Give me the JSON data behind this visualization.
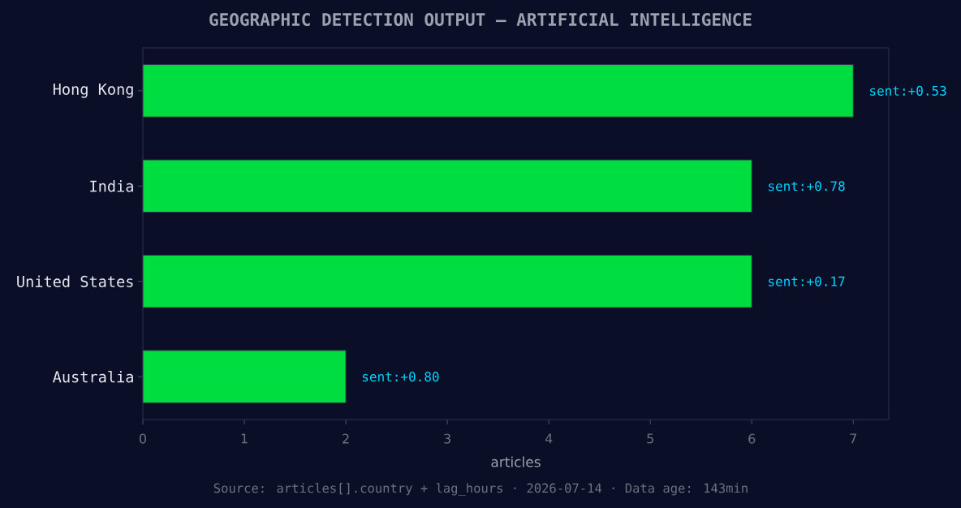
{
  "chart_data": {
    "type": "bar",
    "orientation": "horizontal",
    "title": "GEOGRAPHIC DETECTION OUTPUT — ARTIFICIAL INTELLIGENCE",
    "xlabel": "articles",
    "categories": [
      "Hong Kong",
      "India",
      "United States",
      "Australia"
    ],
    "values": [
      7,
      6,
      6,
      2
    ],
    "color": "#00dd40",
    "xlim": [
      0,
      7.35
    ],
    "xticks": [
      0,
      1,
      2,
      3,
      4,
      5,
      6,
      7
    ],
    "annotations": [
      {
        "text": "sent:+0.53",
        "x": 7,
        "y": "Hong Kong"
      },
      {
        "text": "sent:+0.78",
        "x": 6,
        "y": "India"
      },
      {
        "text": "sent:+0.17",
        "x": 6,
        "y": "United States"
      },
      {
        "text": "sent:+0.80",
        "x": 2,
        "y": "Australia"
      },
      "Source: articles[].country + lag_hours · 2026-07-14 · Data age: 143min"
    ]
  }
}
